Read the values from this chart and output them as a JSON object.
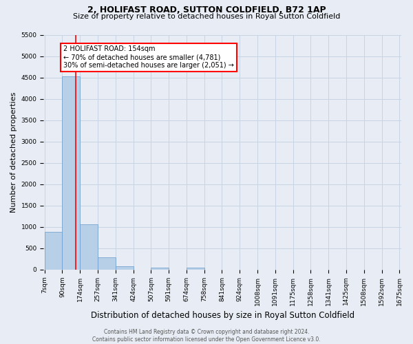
{
  "title": "2, HOLIFAST ROAD, SUTTON COLDFIELD, B72 1AP",
  "subtitle": "Size of property relative to detached houses in Royal Sutton Coldfield",
  "xlabel": "Distribution of detached houses by size in Royal Sutton Coldfield",
  "ylabel": "Number of detached properties",
  "footer_line1": "Contains HM Land Registry data © Crown copyright and database right 2024.",
  "footer_line2": "Contains public sector information licensed under the Open Government Licence v3.0.",
  "bar_edges": [
    7,
    90,
    174,
    257,
    341,
    424,
    507,
    591,
    674,
    758,
    841,
    924,
    1008,
    1091,
    1175,
    1258,
    1341,
    1425,
    1508,
    1592,
    1675
  ],
  "bar_heights": [
    880,
    4530,
    1060,
    295,
    72,
    0,
    48,
    0,
    48,
    0,
    0,
    0,
    0,
    0,
    0,
    0,
    0,
    0,
    0,
    0
  ],
  "bar_color": "#b8cfe8",
  "bar_edge_color": "#6699cc",
  "property_line_x": 154,
  "property_line_color": "red",
  "annotation_text": "2 HOLIFAST ROAD: 154sqm\n← 70% of detached houses are smaller (4,781)\n30% of semi-detached houses are larger (2,051) →",
  "annotation_box_color": "red",
  "ylim": [
    0,
    5500
  ],
  "yticks": [
    0,
    500,
    1000,
    1500,
    2000,
    2500,
    3000,
    3500,
    4000,
    4500,
    5000,
    5500
  ],
  "grid_color": "#c8d4e4",
  "background_color": "#e8edf5",
  "title_fontsize": 9,
  "subtitle_fontsize": 8,
  "xlabel_fontsize": 8.5,
  "ylabel_fontsize": 8,
  "tick_fontsize": 6.5,
  "annotation_fontsize": 7,
  "footer_fontsize": 5.5
}
